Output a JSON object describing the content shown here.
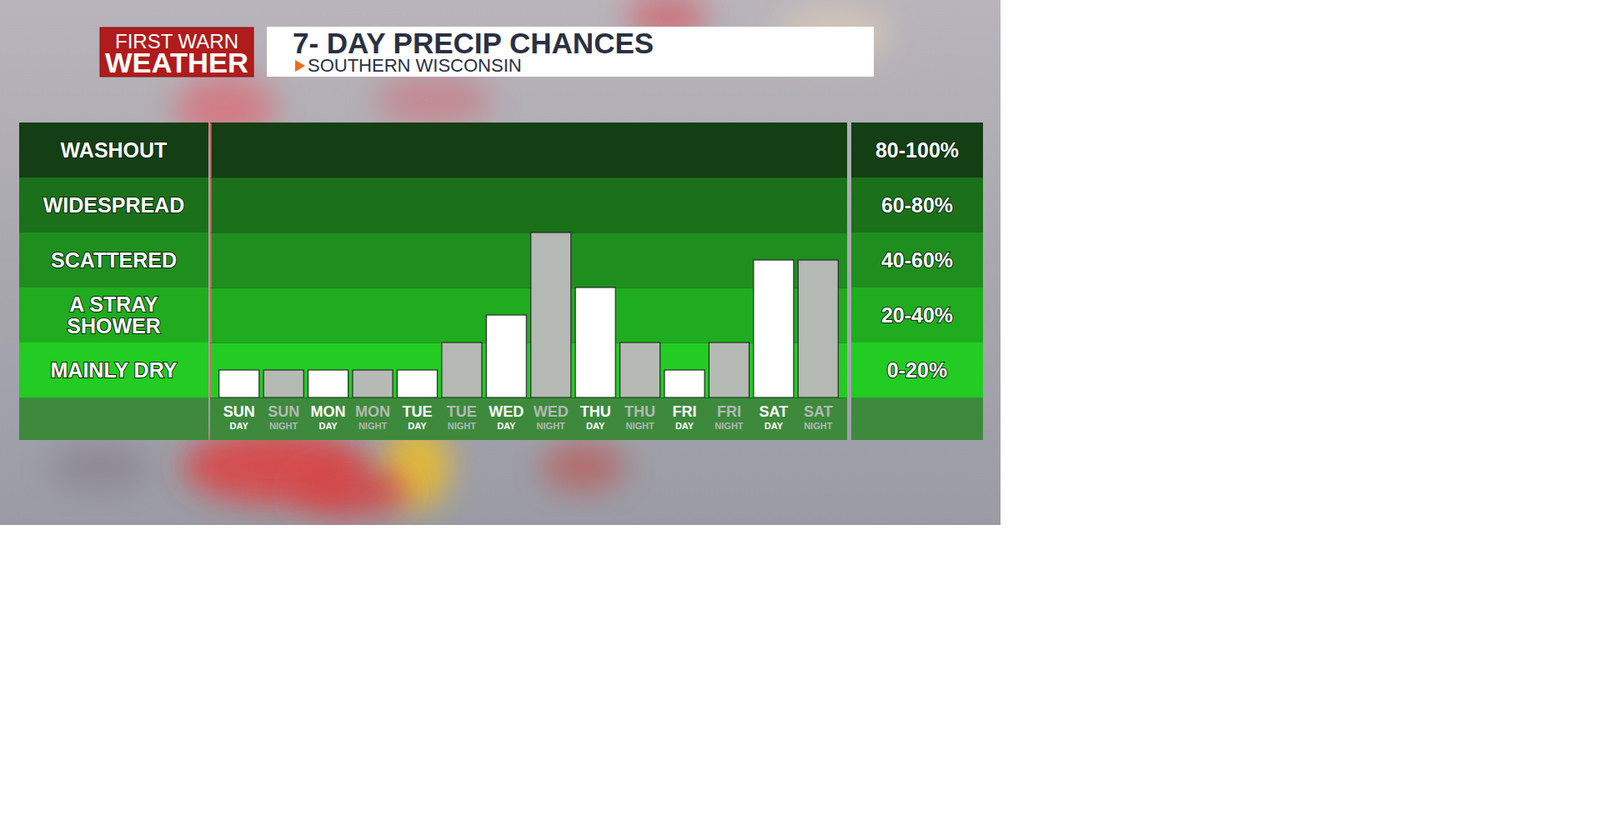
{
  "chart_data": {
    "type": "bar",
    "title": "7- DAY PRECIP CHANCES",
    "subtitle": "SOUTHERN WISCONSIN",
    "annotations": [
      "FIRST WARN",
      "WEATHER"
    ],
    "categories": [
      "SUN DAY",
      "SUN NIGHT",
      "MON DAY",
      "MON NIGHT",
      "TUE DAY",
      "TUE NIGHT",
      "WED DAY",
      "WED NIGHT",
      "THU DAY",
      "THU NIGHT",
      "FRI DAY",
      "FRI NIGHT",
      "SAT DAY",
      "SAT NIGHT"
    ],
    "values": [
      10,
      10,
      10,
      10,
      10,
      20,
      30,
      60,
      40,
      20,
      10,
      20,
      50,
      50
    ],
    "colors": [
      "#ffffff",
      "#b4b9b4",
      "#ffffff",
      "#b4b9b4",
      "#ffffff",
      "#b4b9b4",
      "#ffffff",
      "#b4b9b4",
      "#ffffff",
      "#b4b9b4",
      "#ffffff",
      "#b4b9b4",
      "#ffffff",
      "#b4b9b4"
    ],
    "ylim": [
      0,
      100
    ],
    "yticks": [
      0,
      20,
      40,
      60,
      80,
      100
    ],
    "tick_labels": "x",
    "grid": true,
    "bands": [
      {
        "from": 80,
        "to": 100,
        "label": "WASHOUT",
        "range_label": "80-100%",
        "color": "#143f14"
      },
      {
        "from": 60,
        "to": 80,
        "label": "WIDESPREAD",
        "range_label": "60-80%",
        "color": "#1a711a"
      },
      {
        "from": 40,
        "to": 60,
        "label": "SCATTERED",
        "range_label": "40-60%",
        "color": "#1e8f1e"
      },
      {
        "from": 20,
        "to": 40,
        "label": "A STRAY SHOWER",
        "range_label": "20-40%",
        "color": "#1fac1f"
      },
      {
        "from": 0,
        "to": 20,
        "label": "MAINLY DRY",
        "range_label": "0-20%",
        "color": "#22cc22"
      }
    ]
  }
}
